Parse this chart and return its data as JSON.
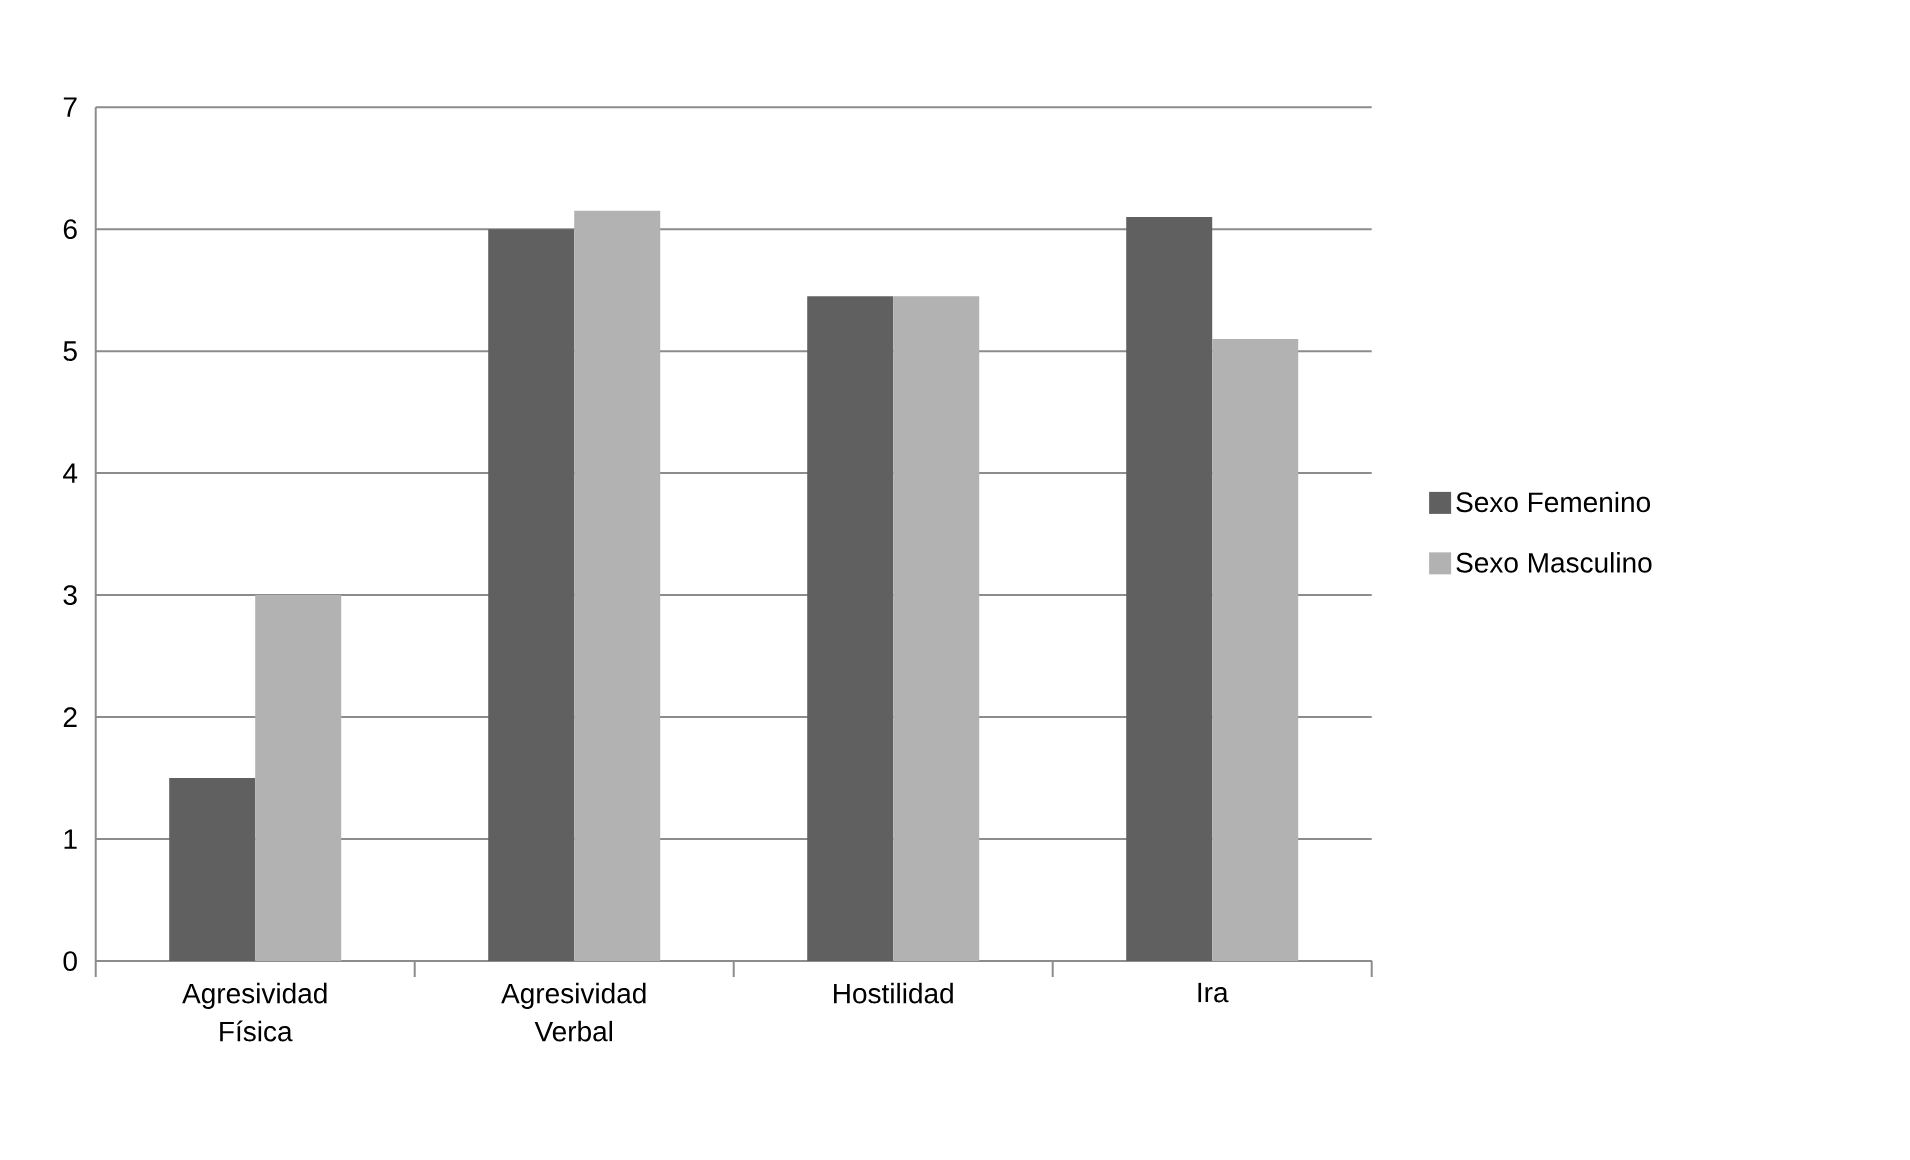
{
  "chart_data": {
    "type": "bar",
    "categories": [
      "Agresividad Física",
      "Agresividad Verbal",
      "Hostilidad",
      "Ira"
    ],
    "series": [
      {
        "name": "Sexo Femenino",
        "color": "#606060",
        "values": [
          1.5,
          6.0,
          5.45,
          6.1
        ]
      },
      {
        "name": "Sexo Masculino",
        "color": "#b2b2b2",
        "values": [
          3.0,
          6.15,
          5.45,
          5.1
        ]
      }
    ],
    "ylim": [
      0,
      7
    ],
    "yticks": [
      0,
      1,
      2,
      3,
      4,
      5,
      6,
      7
    ],
    "grid": "y",
    "legend": "right"
  }
}
